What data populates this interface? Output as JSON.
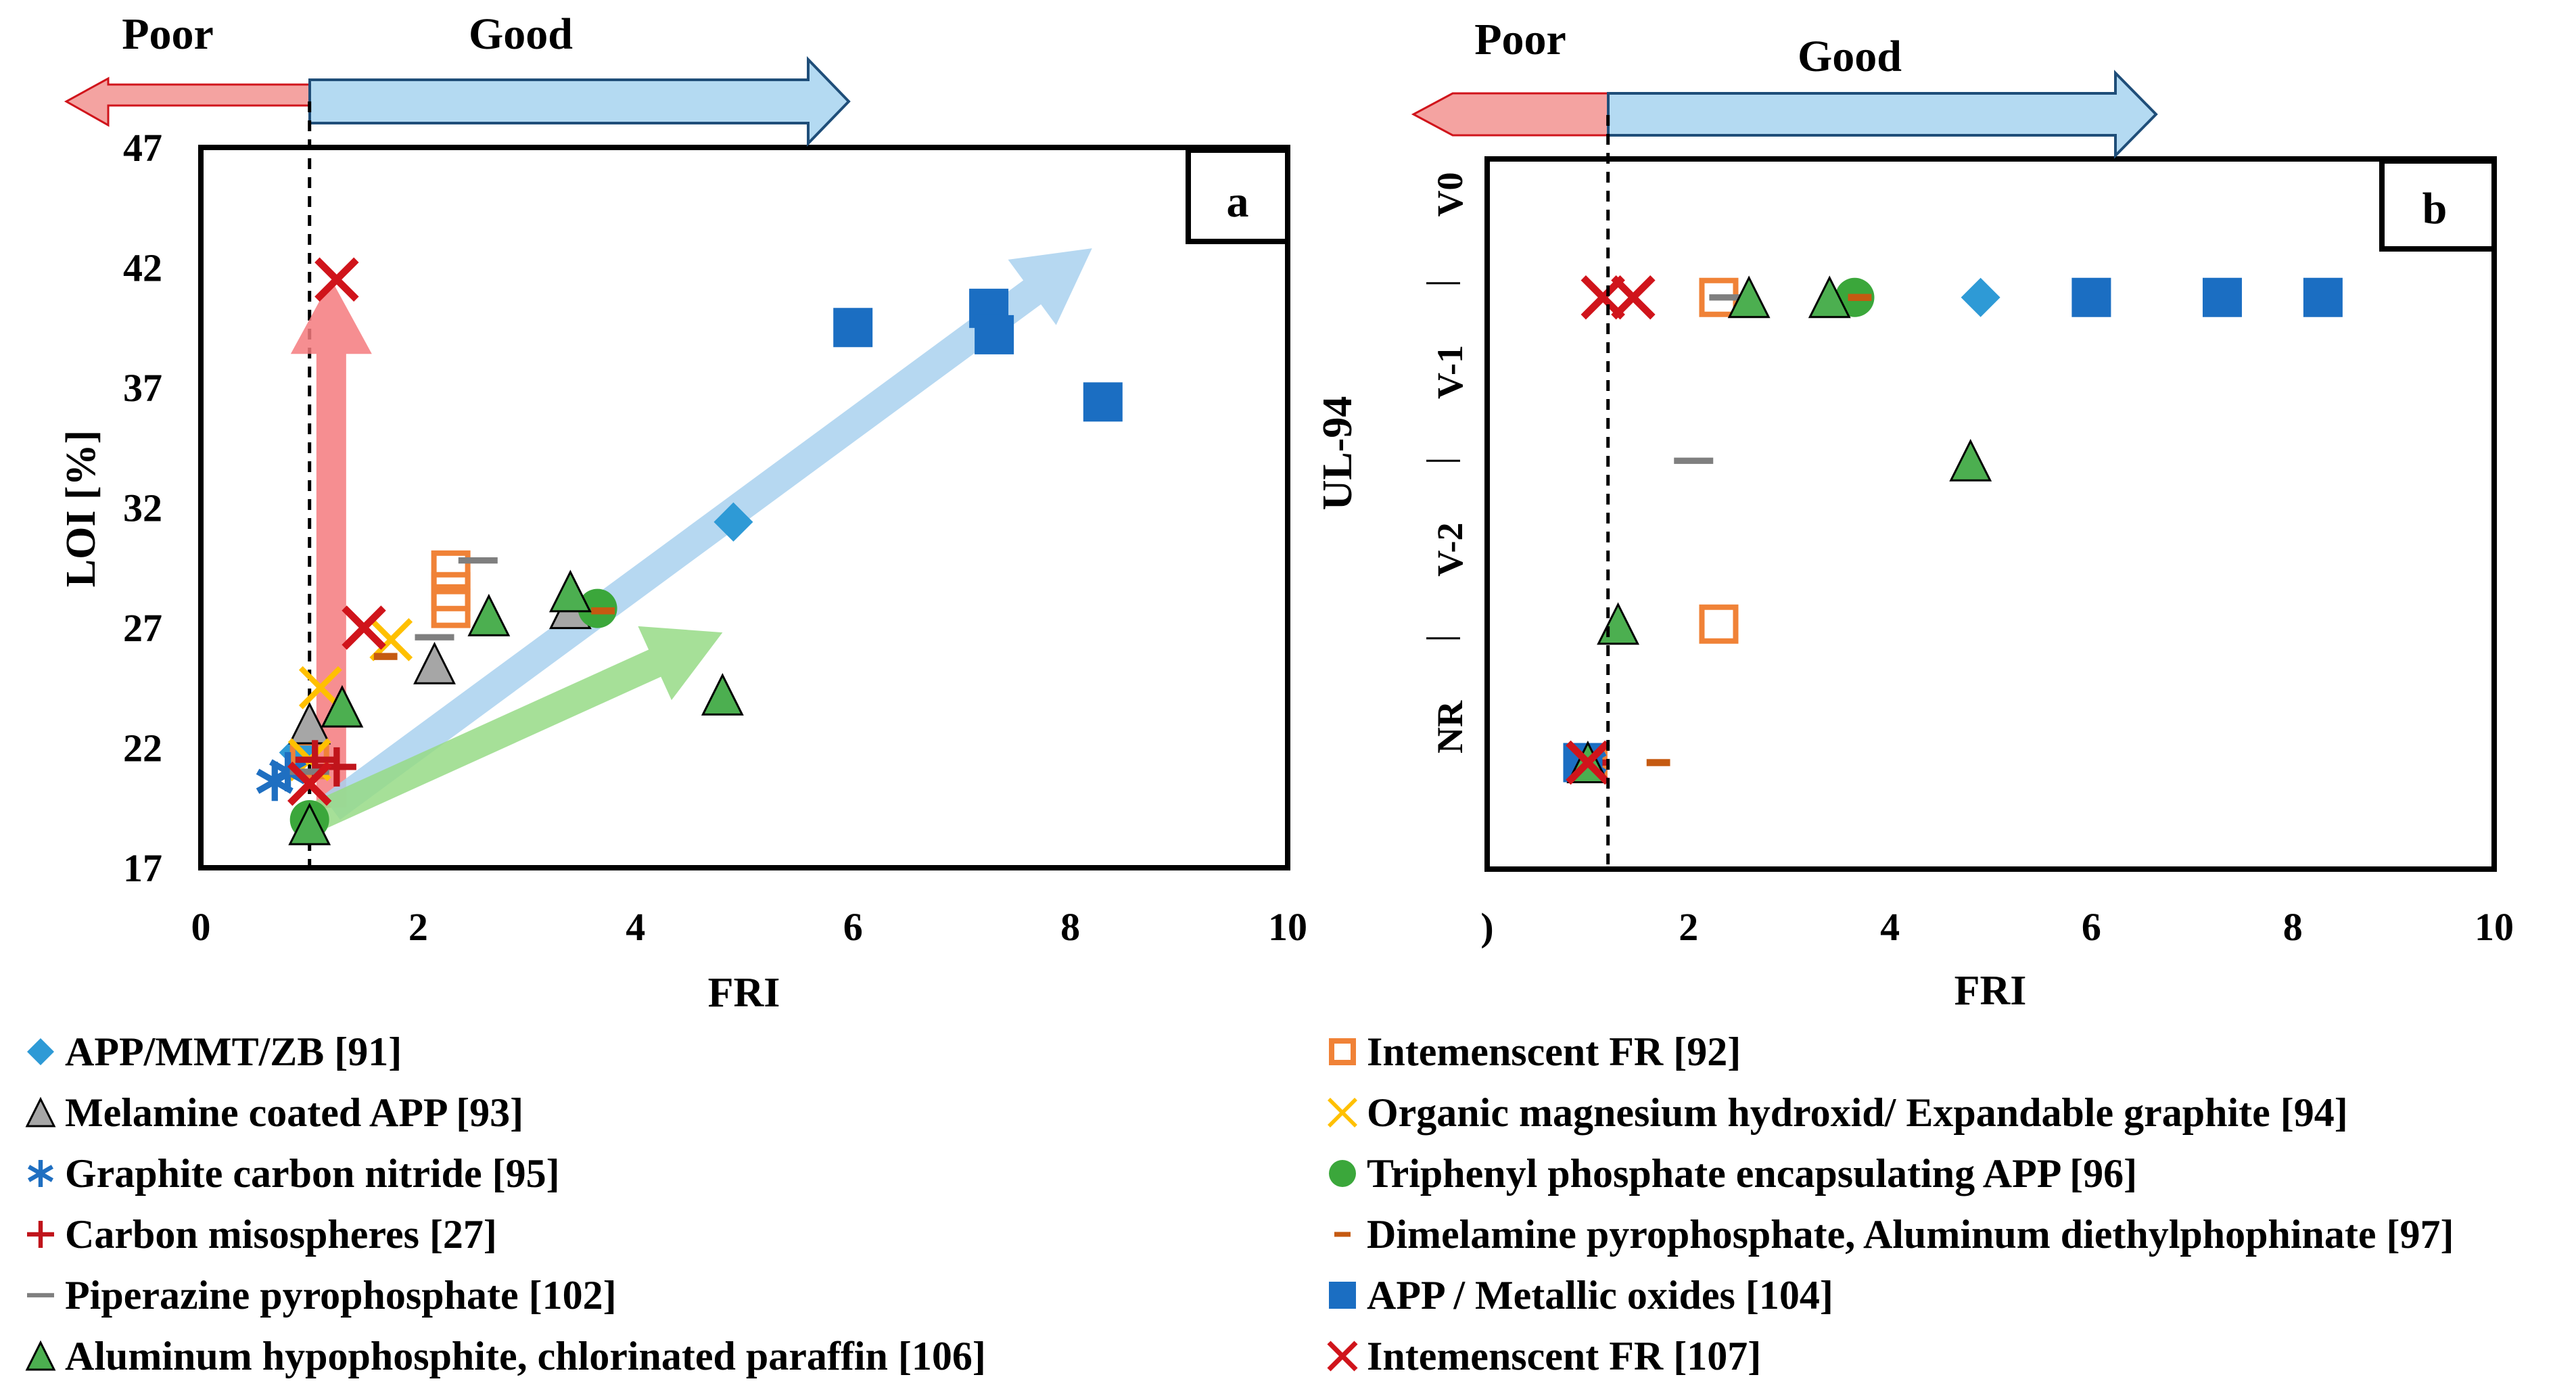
{
  "chart_data": [
    {
      "id": "a",
      "type": "scatter",
      "panel_label": "a",
      "xlabel": "FRI",
      "ylabel": "LOI [%]",
      "xlim": [
        0,
        10
      ],
      "ylim": [
        17,
        47
      ],
      "xticks": [
        0,
        2,
        4,
        6,
        8,
        10
      ],
      "yticks": [
        17,
        22,
        27,
        32,
        37,
        42,
        47
      ],
      "reference_x": 1,
      "poor_label": "Poor",
      "good_label": "Good",
      "arrows": [
        {
          "name": "red-arrow",
          "color": "#F47A7E",
          "from": [
            1.2,
            19.5
          ],
          "to": [
            1.2,
            41.5
          ]
        },
        {
          "name": "blue-arrow",
          "color": "#A9D1EE",
          "from": [
            1.2,
            19.5
          ],
          "to": [
            8.2,
            42.8
          ]
        },
        {
          "name": "green-arrow",
          "color": "#97DB86",
          "from": [
            1.0,
            19.0
          ],
          "to": [
            4.8,
            26.8
          ]
        }
      ],
      "series": [
        {
          "key": "app_mmt_zb",
          "points": [
            [
              0.9,
              21.8
            ],
            [
              4.9,
              31.4
            ]
          ]
        },
        {
          "key": "intumescent_92",
          "points": [
            [
              1.0,
              21.5
            ],
            [
              2.3,
              28.5
            ],
            [
              2.3,
              29.4
            ],
            [
              2.3,
              27.8
            ]
          ]
        },
        {
          "key": "melamine_app",
          "points": [
            [
              1.0,
              23.0
            ],
            [
              2.15,
              25.5
            ],
            [
              3.4,
              27.8
            ]
          ]
        },
        {
          "key": "org_mg_eg",
          "points": [
            [
              1.0,
              21.5
            ],
            [
              1.1,
              24.5
            ],
            [
              1.75,
              26.5
            ]
          ]
        },
        {
          "key": "graphite_cn",
          "points": [
            [
              0.68,
              20.6
            ],
            [
              0.8,
              21.0
            ]
          ]
        },
        {
          "key": "triphenyl_app",
          "points": [
            [
              1.0,
              19.0
            ],
            [
              3.65,
              27.8
            ]
          ]
        },
        {
          "key": "carbon_micro",
          "points": [
            [
              1.05,
              21.5
            ],
            [
              1.25,
              21.2
            ]
          ]
        },
        {
          "key": "dimelamine",
          "points": [
            [
              1.7,
              25.8
            ],
            [
              3.7,
              27.7
            ]
          ]
        },
        {
          "key": "piperazine",
          "points": [
            [
              1.0,
              21.0
            ],
            [
              2.15,
              26.6
            ],
            [
              2.55,
              29.8
            ]
          ]
        },
        {
          "key": "app_metal_oxides",
          "points": [
            [
              6.0,
              39.5
            ],
            [
              7.25,
              40.3
            ],
            [
              7.3,
              39.2
            ],
            [
              8.3,
              36.4
            ]
          ]
        },
        {
          "key": "al_hypophosphite",
          "points": [
            [
              1.0,
              18.8
            ],
            [
              1.3,
              23.7
            ],
            [
              2.65,
              27.5
            ],
            [
              3.4,
              28.5
            ],
            [
              4.8,
              24.2
            ]
          ]
        },
        {
          "key": "intumescent_107",
          "points": [
            [
              1.0,
              20.5
            ],
            [
              1.25,
              41.5
            ],
            [
              1.5,
              27.0
            ]
          ]
        }
      ]
    },
    {
      "id": "b",
      "type": "scatter",
      "panel_label": "b",
      "xlabel": "FRI",
      "ylabel": "UL-94",
      "xlim": [
        0,
        10
      ],
      "ylim": [
        0,
        4
      ],
      "xticks": [
        0,
        2,
        4,
        6,
        8,
        10
      ],
      "xtick_labels": [
        ")",
        "2",
        "4",
        "6",
        "8",
        "10"
      ],
      "ycategories": [
        "NR",
        "V-2",
        "V-1",
        "V0"
      ],
      "reference_x": 1.2,
      "poor_label": "Poor",
      "good_label": "Good",
      "series": [
        {
          "key": "app_mmt_zb",
          "points": [
            [
              4.9,
              3.22
            ]
          ]
        },
        {
          "key": "intumescent_92",
          "points": [
            [
              2.3,
              3.22
            ],
            [
              2.3,
              1.38
            ],
            [
              1.0,
              0.6
            ]
          ]
        },
        {
          "key": "melamine_app",
          "points": [
            [
              1.0,
              0.6
            ]
          ]
        },
        {
          "key": "org_mg_eg",
          "points": [
            [
              1.0,
              0.6
            ]
          ]
        },
        {
          "key": "graphite_cn",
          "points": [
            [
              1.0,
              0.6
            ]
          ]
        },
        {
          "key": "triphenyl_app",
          "points": [
            [
              3.65,
              3.22
            ]
          ]
        },
        {
          "key": "carbon_micro",
          "points": [
            [
              1.0,
              0.6
            ]
          ]
        },
        {
          "key": "dimelamine",
          "points": [
            [
              3.7,
              3.22
            ],
            [
              1.7,
              0.6
            ]
          ]
        },
        {
          "key": "piperazine",
          "points": [
            [
              2.4,
              3.22
            ],
            [
              2.05,
              2.3
            ]
          ]
        },
        {
          "key": "app_metal_oxides",
          "points": [
            [
              0.95,
              0.6
            ],
            [
              6.0,
              3.22
            ],
            [
              7.3,
              3.22
            ],
            [
              8.3,
              3.22
            ]
          ]
        },
        {
          "key": "al_hypophosphite",
          "points": [
            [
              2.6,
              3.22
            ],
            [
              3.4,
              3.22
            ],
            [
              4.8,
              2.3
            ],
            [
              1.3,
              1.38
            ],
            [
              1.0,
              0.6
            ]
          ]
        },
        {
          "key": "intumescent_107",
          "points": [
            [
              1.15,
              3.22
            ],
            [
              1.45,
              3.22
            ],
            [
              1.0,
              0.6
            ]
          ]
        }
      ]
    }
  ],
  "legend": [
    {
      "key": "app_mmt_zb",
      "label": "APP/MMT/ZB [91]",
      "marker": "diamond",
      "color": "#2E9AD6"
    },
    {
      "key": "intumescent_92",
      "label": "Intemenscent FR [92]",
      "marker": "square-open",
      "color": "#F08237"
    },
    {
      "key": "melamine_app",
      "label": "Melamine coated APP [93]",
      "marker": "triangle",
      "color": "#A6A6A6"
    },
    {
      "key": "org_mg_eg",
      "label": "Organic magnesium hydroxid/ Expandable graphite [94]",
      "marker": "x-thin",
      "color": "#FFC000"
    },
    {
      "key": "graphite_cn",
      "label": "Graphite carbon nitride [95]",
      "marker": "asterisk",
      "color": "#1F6FC1"
    },
    {
      "key": "triphenyl_app",
      "label": "Triphenyl phosphate encapsulating APP [96]",
      "marker": "circle",
      "color": "#3BA73B"
    },
    {
      "key": "carbon_micro",
      "label": "Carbon misospheres [27]",
      "marker": "plus",
      "color": "#C0141B"
    },
    {
      "key": "dimelamine",
      "label": "Dimelamine pyrophosphate, Aluminum diethylphophinate [97]",
      "marker": "dash-short",
      "color": "#C55A11"
    },
    {
      "key": "piperazine",
      "label": "Piperazine pyrophosphate [102]",
      "marker": "dash",
      "color": "#7F7F7F"
    },
    {
      "key": "app_metal_oxides",
      "label": "APP / Metallic oxides [104]",
      "marker": "square",
      "color": "#1B6EC2"
    },
    {
      "key": "al_hypophosphite",
      "label": "Aluminum hypophosphite, chlorinated paraffin [106]",
      "marker": "triangle",
      "color": "#4CAF50"
    },
    {
      "key": "intumescent_107",
      "label": "Intemenscent FR [107]",
      "marker": "x",
      "color": "#D0141B"
    }
  ]
}
